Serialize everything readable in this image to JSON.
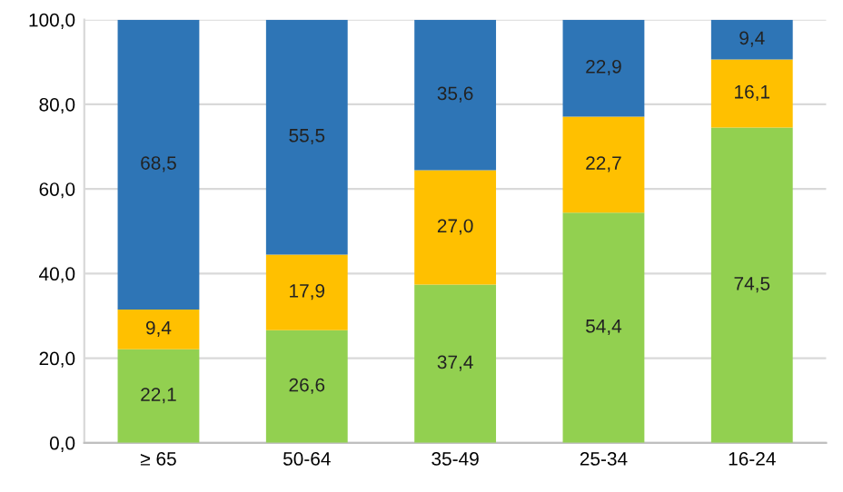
{
  "chart_data": {
    "type": "bar",
    "stacked": true,
    "categories": [
      "≥ 65",
      "50-64",
      "35-49",
      "25-34",
      "16-24"
    ],
    "series": [
      {
        "color": "#92d050",
        "values": [
          22.1,
          26.6,
          37.4,
          54.4,
          74.5
        ],
        "value_labels": [
          "22,1",
          "26,6",
          "37,4",
          "54,4",
          "74,5"
        ]
      },
      {
        "color": "#ffc000",
        "values": [
          9.4,
          17.9,
          27.0,
          22.7,
          16.1
        ],
        "value_labels": [
          "9,4",
          "17,9",
          "27,0",
          "22,7",
          "16,1"
        ]
      },
      {
        "color": "#2e75b6",
        "values": [
          68.5,
          55.5,
          35.6,
          22.9,
          9.4
        ],
        "value_labels": [
          "68,5",
          "55,5",
          "35,6",
          "22,9",
          "9,4"
        ]
      }
    ],
    "ylim": [
      0,
      100
    ],
    "yticks": [
      {
        "value": 0,
        "label": "0,0"
      },
      {
        "value": 20,
        "label": "20,0"
      },
      {
        "value": 40,
        "label": "40,0"
      },
      {
        "value": 60,
        "label": "60,0"
      },
      {
        "value": 80,
        "label": "80,0"
      },
      {
        "value": 100,
        "label": "100,0"
      }
    ],
    "grid": "y"
  }
}
